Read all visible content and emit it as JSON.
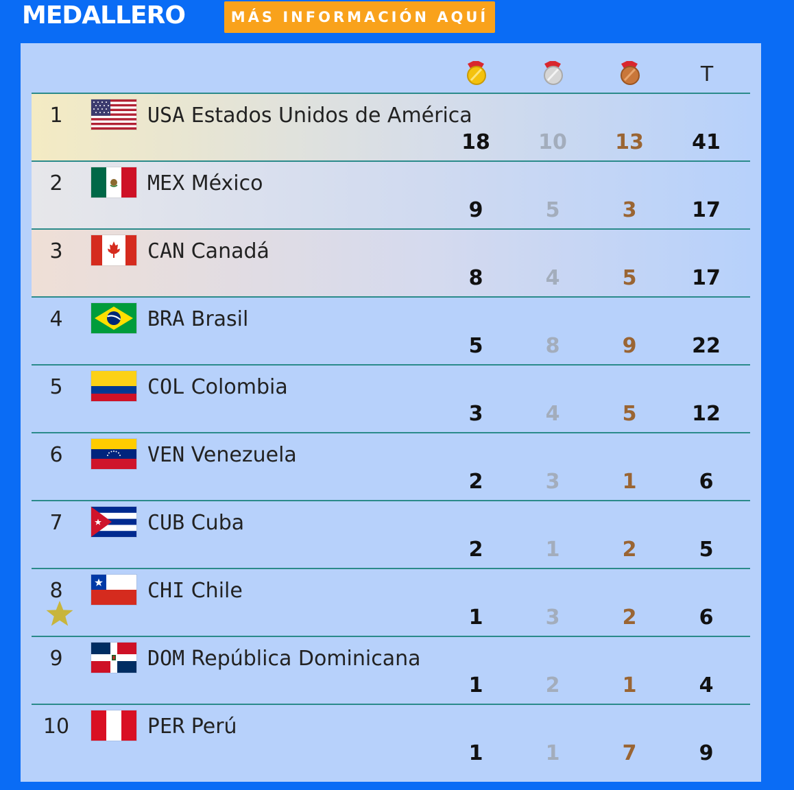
{
  "header": {
    "title": "MEDALLERO",
    "info_button_label": "MÁS INFORMACIÓN AQUÍ"
  },
  "columns": {
    "gold_icon": "gold-medal-icon",
    "silver_icon": "silver-medal-icon",
    "bronze_icon": "bronze-medal-icon",
    "total_label": "T"
  },
  "colors": {
    "background": "#0a6cf5",
    "panel": "#b7d1fb",
    "button": "#f9a21b",
    "gold_medal": "#f4c20d",
    "silver_medal": "#d6d6d6",
    "bronze_medal": "#c9773a",
    "ribbon": "#d9272e"
  },
  "rows": [
    {
      "rank": "1",
      "code": "USA",
      "name": "Estados Unidos de América",
      "gold": "18",
      "silver": "10",
      "bronze": "13",
      "total": "41",
      "flag": "usa-flag"
    },
    {
      "rank": "2",
      "code": "MEX",
      "name": "México",
      "gold": "9",
      "silver": "5",
      "bronze": "3",
      "total": "17",
      "flag": "mexico-flag"
    },
    {
      "rank": "3",
      "code": "CAN",
      "name": "Canadá",
      "gold": "8",
      "silver": "4",
      "bronze": "5",
      "total": "17",
      "flag": "canada-flag"
    },
    {
      "rank": "4",
      "code": "BRA",
      "name": "Brasil",
      "gold": "5",
      "silver": "8",
      "bronze": "9",
      "total": "22",
      "flag": "brazil-flag"
    },
    {
      "rank": "5",
      "code": "COL",
      "name": "Colombia",
      "gold": "3",
      "silver": "4",
      "bronze": "5",
      "total": "12",
      "flag": "colombia-flag"
    },
    {
      "rank": "6",
      "code": "VEN",
      "name": "Venezuela",
      "gold": "2",
      "silver": "3",
      "bronze": "1",
      "total": "6",
      "flag": "venezuela-flag"
    },
    {
      "rank": "7",
      "code": "CUB",
      "name": "Cuba",
      "gold": "2",
      "silver": "1",
      "bronze": "2",
      "total": "5",
      "flag": "cuba-flag"
    },
    {
      "rank": "8",
      "code": "CHI",
      "name": "Chile",
      "gold": "1",
      "silver": "3",
      "bronze": "2",
      "total": "6",
      "flag": "chile-flag",
      "highlight_icon": "star-icon"
    },
    {
      "rank": "9",
      "code": "DOM",
      "name": "República Dominicana",
      "gold": "1",
      "silver": "2",
      "bronze": "1",
      "total": "4",
      "flag": "dominican-republic-flag"
    },
    {
      "rank": "10",
      "code": "PER",
      "name": "Perú",
      "gold": "1",
      "silver": "1",
      "bronze": "7",
      "total": "9",
      "flag": "peru-flag"
    }
  ]
}
